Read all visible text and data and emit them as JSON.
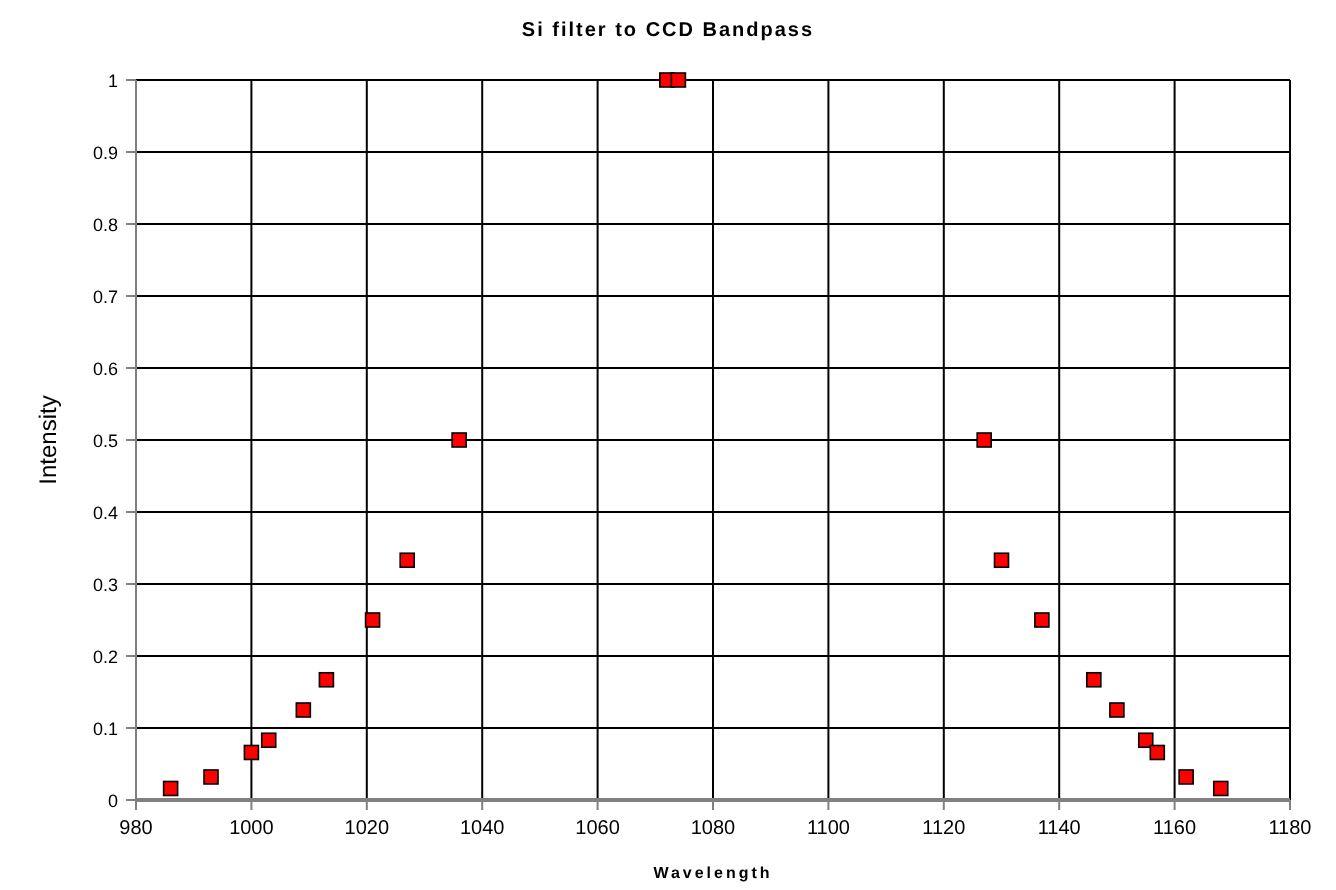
{
  "chart_data": {
    "type": "scatter",
    "title": "Si filter to CCD Bandpass",
    "xlabel": "Wavelength",
    "ylabel": "Intensity",
    "x": [
      986,
      993,
      1000,
      1003,
      1009,
      1013,
      1021,
      1027,
      1036,
      1072,
      1074,
      1127,
      1130,
      1137,
      1146,
      1150,
      1155,
      1157,
      1162,
      1168
    ],
    "values": [
      0.016,
      0.032,
      0.066,
      0.083,
      0.125,
      0.167,
      0.25,
      0.333,
      0.5,
      1,
      1,
      0.5,
      0.333,
      0.25,
      0.167,
      0.125,
      0.083,
      0.066,
      0.032,
      0.016
    ],
    "color": "#ff0000",
    "marker": "square",
    "grid": true,
    "xlim": [
      980,
      1180
    ],
    "xticks": [
      980,
      1000,
      1020,
      1040,
      1060,
      1080,
      1100,
      1120,
      1140,
      1160,
      1180
    ],
    "ylim": [
      0,
      1
    ],
    "yticks": [
      0,
      0.1,
      0.2,
      0.3,
      0.4,
      0.5,
      0.6,
      0.7,
      0.8,
      0.9,
      1
    ]
  }
}
